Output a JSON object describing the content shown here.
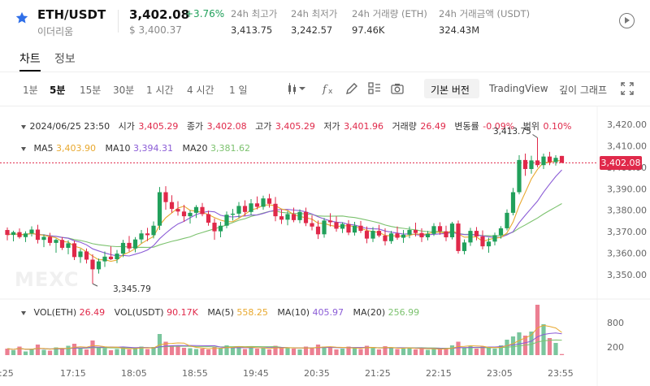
{
  "header": {
    "pair": "ETH/USDT",
    "sub": "이더리움",
    "price": "3,402.08",
    "change_pct": "+3.76%",
    "usd_price": "$ 3,400.37",
    "stats": [
      {
        "label": "24h 최고가",
        "value": "3,413.75"
      },
      {
        "label": "24h 최저가",
        "value": "3,242.57"
      },
      {
        "label": "24h 거래량 (ETH)",
        "value": "97.46K"
      },
      {
        "label": "24h 거래금액 (USDT)",
        "value": "324.43M"
      }
    ]
  },
  "tabs": [
    {
      "label": "차트"
    },
    {
      "label": "정보"
    }
  ],
  "toolbar": {
    "intervals": [
      "1분",
      "5분",
      "15분",
      "30분",
      "1 시간",
      "4 시간",
      "1 일"
    ],
    "selected_interval": "5분",
    "basic_version": "기본 버전",
    "tradingview": "TradingView",
    "depth": "깊이 그래프"
  },
  "legend": {
    "datetime": "2024/06/25 23:50",
    "open_label": "시가",
    "open": "3,405.29",
    "close_label": "종가",
    "close": "3,402.08",
    "high_label": "고가",
    "high": "3,405.29",
    "low_label": "저가",
    "low": "3,401.96",
    "volume_label": "거래량",
    "volume": "26.49",
    "change_label": "변동률",
    "change": "-0.09%",
    "range_label": "범위",
    "range": "0.10%",
    "ma5_label": "MA5",
    "ma5": "3,403.90",
    "ma10_label": "MA10",
    "ma10": "3,394.31",
    "ma20_label": "MA20",
    "ma20": "3,381.62"
  },
  "volume_legend": {
    "vol_eth_label": "VOL(ETH)",
    "vol_eth": "26.49",
    "vol_usdt_label": "VOL(USDT)",
    "vol_usdt": "90.17K",
    "ma5_label": "MA(5)",
    "ma5": "558.25",
    "ma10_label": "MA(10)",
    "ma10": "405.97",
    "ma20_label": "MA(20)",
    "ma20": "256.99"
  },
  "annotations": {
    "high": "3,413.75",
    "low": "3,345.79",
    "current_price_tag": "3,402.08"
  },
  "watermark": "MEXC",
  "colors": {
    "up": "#21a05b",
    "down": "#e0294a",
    "ma5": "#e8a82e",
    "ma10": "#8b5cd6",
    "ma20": "#7cc26e",
    "accent_star": "#2f6fe8"
  },
  "chart_data": {
    "type": "candlestick",
    "price_axis": [
      "3,420.00",
      "3,410.00",
      "3,400.00",
      "3,390.00",
      "3,380.00",
      "3,370.00",
      "3,360.00",
      "3,350.00"
    ],
    "price_ticks": [
      3420,
      3410,
      3400,
      3390,
      3380,
      3370,
      3360,
      3350
    ],
    "volume_axis": [
      "800",
      "200"
    ],
    "volume_ticks": [
      800,
      200
    ],
    "time_axis": [
      ":25",
      "17:15",
      "18:05",
      "18:55",
      "19:45",
      "20:35",
      "21:25",
      "22:15",
      "23:05",
      "23:55"
    ],
    "time_tick_index": [
      0,
      10,
      20,
      30,
      40,
      50,
      60,
      70,
      80,
      90
    ],
    "candles": [
      [
        3370.8,
        3372.0,
        3366.0,
        3368.5
      ],
      [
        3368.5,
        3370.5,
        3365.5,
        3369.8
      ],
      [
        3369.8,
        3371.5,
        3366.8,
        3367.5
      ],
      [
        3367.5,
        3370.2,
        3365.2,
        3369.2
      ],
      [
        3369.2,
        3372.5,
        3367.8,
        3371.0
      ],
      [
        3371.0,
        3373.2,
        3364.5,
        3366.2
      ],
      [
        3366.2,
        3368.8,
        3362.8,
        3367.6
      ],
      [
        3367.6,
        3369.5,
        3363.5,
        3364.8
      ],
      [
        3364.8,
        3366.8,
        3360.2,
        3366.2
      ],
      [
        3366.2,
        3367.5,
        3361.5,
        3362.5
      ],
      [
        3362.5,
        3366.0,
        3359.5,
        3364.6
      ],
      [
        3364.6,
        3365.8,
        3356.8,
        3358.2
      ],
      [
        3358.2,
        3362.0,
        3355.5,
        3360.8
      ],
      [
        3360.8,
        3362.2,
        3355.2,
        3357.0
      ],
      [
        3357.0,
        3359.5,
        3345.79,
        3352.5
      ],
      [
        3352.5,
        3357.5,
        3350.5,
        3356.2
      ],
      [
        3356.2,
        3360.8,
        3353.6,
        3358.4
      ],
      [
        3358.4,
        3363.2,
        3356.8,
        3357.2
      ],
      [
        3357.2,
        3361.5,
        3355.4,
        3359.8
      ],
      [
        3359.8,
        3366.2,
        3358.2,
        3364.8
      ],
      [
        3364.8,
        3368.0,
        3360.8,
        3362.2
      ],
      [
        3362.2,
        3367.5,
        3360.4,
        3366.4
      ],
      [
        3366.4,
        3370.8,
        3364.6,
        3369.2
      ],
      [
        3369.2,
        3371.8,
        3365.6,
        3368.4
      ],
      [
        3368.4,
        3374.8,
        3366.9,
        3372.8
      ],
      [
        3372.8,
        3390.8,
        3370.8,
        3388.4
      ],
      [
        3388.4,
        3391.2,
        3380.2,
        3383.8
      ],
      [
        3383.8,
        3387.0,
        3378.8,
        3380.6
      ],
      [
        3380.6,
        3384.2,
        3377.5,
        3379.4
      ],
      [
        3379.4,
        3382.5,
        3374.6,
        3377.2
      ],
      [
        3377.2,
        3380.0,
        3373.8,
        3378.8
      ],
      [
        3378.8,
        3382.4,
        3376.4,
        3381.5
      ],
      [
        3381.5,
        3383.4,
        3377.2,
        3378.2
      ],
      [
        3378.2,
        3379.8,
        3372.8,
        3374.2
      ],
      [
        3374.2,
        3376.2,
        3366.2,
        3370.2
      ],
      [
        3370.2,
        3374.6,
        3367.4,
        3372.8
      ],
      [
        3372.8,
        3379.4,
        3371.6,
        3377.9
      ],
      [
        3377.9,
        3380.6,
        3375.2,
        3378.4
      ],
      [
        3378.4,
        3383.8,
        3376.4,
        3382.0
      ],
      [
        3382.0,
        3384.6,
        3377.4,
        3379.2
      ],
      [
        3379.2,
        3385.2,
        3377.6,
        3383.2
      ],
      [
        3383.2,
        3386.4,
        3380.4,
        3381.6
      ],
      [
        3381.6,
        3386.8,
        3380.2,
        3385.5
      ],
      [
        3385.5,
        3387.6,
        3381.2,
        3383.0
      ],
      [
        3383.0,
        3386.2,
        3374.9,
        3377.2
      ],
      [
        3377.2,
        3380.2,
        3373.6,
        3375.6
      ],
      [
        3375.6,
        3379.6,
        3373.0,
        3378.2
      ],
      [
        3378.2,
        3381.2,
        3374.4,
        3375.4
      ],
      [
        3375.4,
        3380.4,
        3374.0,
        3379.2
      ],
      [
        3379.2,
        3381.2,
        3372.6,
        3374.0
      ],
      [
        3374.0,
        3377.6,
        3370.6,
        3372.4
      ],
      [
        3372.4,
        3375.2,
        3366.6,
        3368.8
      ],
      [
        3368.8,
        3376.4,
        3367.2,
        3375.2
      ],
      [
        3375.2,
        3378.6,
        3372.4,
        3374.4
      ],
      [
        3374.4,
        3377.2,
        3370.0,
        3371.4
      ],
      [
        3371.4,
        3374.4,
        3369.4,
        3373.6
      ],
      [
        3373.6,
        3375.4,
        3368.4,
        3369.6
      ],
      [
        3369.6,
        3374.6,
        3368.2,
        3372.8
      ],
      [
        3372.8,
        3375.0,
        3369.4,
        3370.4
      ],
      [
        3370.4,
        3372.4,
        3364.6,
        3366.8
      ],
      [
        3366.8,
        3372.2,
        3365.2,
        3370.4
      ],
      [
        3370.4,
        3373.2,
        3367.4,
        3368.2
      ],
      [
        3368.2,
        3371.6,
        3363.6,
        3365.6
      ],
      [
        3365.6,
        3370.4,
        3364.4,
        3369.2
      ],
      [
        3369.2,
        3372.4,
        3366.2,
        3367.2
      ],
      [
        3367.2,
        3370.8,
        3364.8,
        3368.6
      ],
      [
        3368.6,
        3372.4,
        3367.0,
        3370.8
      ],
      [
        3370.8,
        3374.2,
        3367.8,
        3369.4
      ],
      [
        3369.4,
        3371.6,
        3365.2,
        3367.4
      ],
      [
        3367.4,
        3370.4,
        3366.0,
        3369.0
      ],
      [
        3369.0,
        3374.0,
        3368.0,
        3372.6
      ],
      [
        3372.6,
        3374.4,
        3368.6,
        3370.2
      ],
      [
        3370.2,
        3372.8,
        3365.6,
        3367.4
      ],
      [
        3367.4,
        3374.6,
        3366.4,
        3373.8
      ],
      [
        3373.8,
        3375.2,
        3359.8,
        3361.0
      ],
      [
        3361.0,
        3366.4,
        3359.4,
        3365.0
      ],
      [
        3365.0,
        3371.8,
        3363.4,
        3370.4
      ],
      [
        3370.4,
        3372.2,
        3366.0,
        3367.8
      ],
      [
        3367.8,
        3370.6,
        3361.8,
        3363.2
      ],
      [
        3363.2,
        3367.2,
        3360.2,
        3365.4
      ],
      [
        3365.4,
        3369.6,
        3363.6,
        3368.4
      ],
      [
        3368.4,
        3372.6,
        3366.8,
        3371.6
      ],
      [
        3371.6,
        3380.4,
        3370.6,
        3378.8
      ],
      [
        3378.8,
        3390.4,
        3377.6,
        3388.4
      ],
      [
        3388.4,
        3405.6,
        3387.4,
        3403.4
      ],
      [
        3403.4,
        3406.4,
        3396.0,
        3399.2
      ],
      [
        3399.2,
        3405.4,
        3397.0,
        3403.2
      ],
      [
        3403.2,
        3413.75,
        3400.0,
        3401.0
      ],
      [
        3401.0,
        3406.4,
        3399.2,
        3405.0
      ],
      [
        3405.0,
        3407.2,
        3401.0,
        3402.4
      ],
      [
        3402.4,
        3405.6,
        3400.8,
        3404.4
      ],
      [
        3405.29,
        3405.29,
        3401.96,
        3402.08
      ]
    ],
    "volumes": [
      160,
      120,
      210,
      90,
      140,
      260,
      130,
      110,
      190,
      150,
      230,
      280,
      170,
      140,
      360,
      190,
      170,
      120,
      150,
      210,
      140,
      180,
      210,
      150,
      200,
      520,
      330,
      240,
      210,
      180,
      170,
      150,
      160,
      140,
      210,
      180,
      240,
      190,
      220,
      150,
      190,
      160,
      180,
      140,
      230,
      170,
      190,
      160,
      140,
      210,
      180,
      260,
      210,
      180,
      140,
      160,
      210,
      190,
      150,
      230,
      170,
      140,
      220,
      180,
      150,
      160,
      190,
      140,
      170,
      130,
      160,
      140,
      180,
      240,
      330,
      180,
      220,
      160,
      210,
      180,
      160,
      240,
      380,
      460,
      560,
      480,
      580,
      1280,
      760,
      420,
      300,
      26.49
    ],
    "ma5_last": 3403.9,
    "ma10_last": 3394.31,
    "ma20_last": 3381.62
  }
}
